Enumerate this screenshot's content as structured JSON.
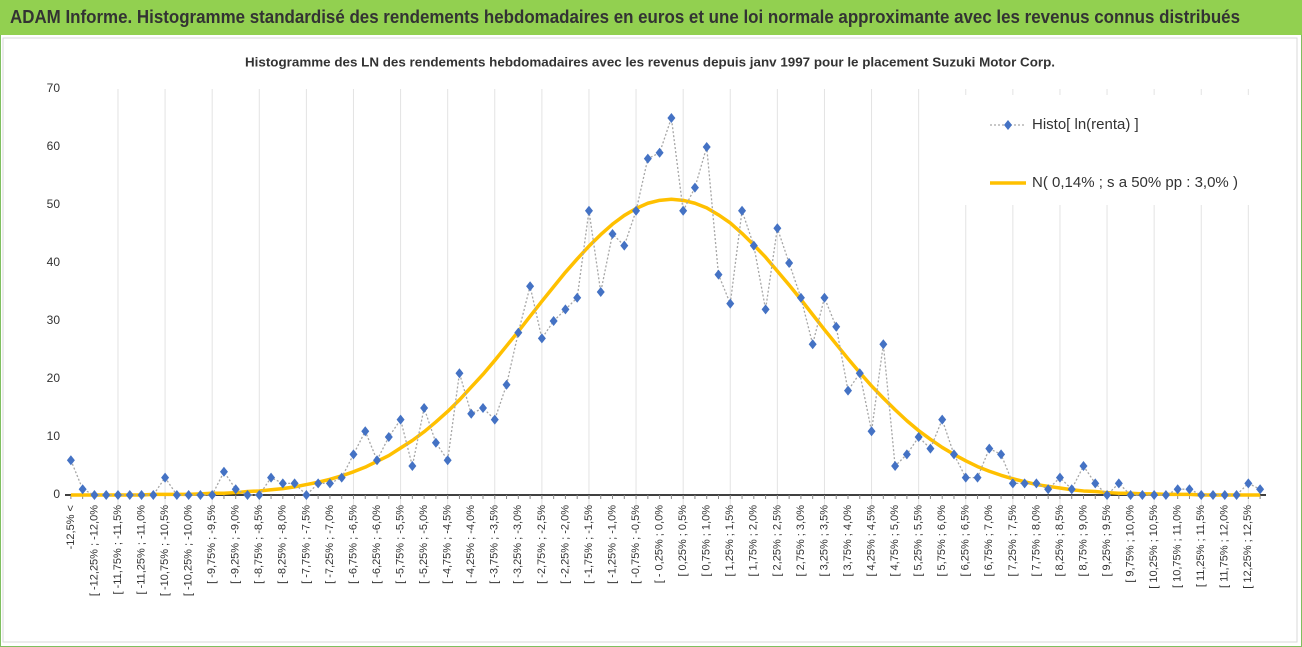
{
  "header": {
    "title": "ADAM Informe. Histogramme standardisé des rendements hebdomadaires en euros et une loi normale approximante avec les revenus connus distribués"
  },
  "chart_data": {
    "type": "line",
    "title": "Histogramme  des LN des rendements hebdomadaires avec les revenus depuis janv 1997 pour le placement Suzuki Motor Corp.",
    "categories": [
      "-12,5% <",
      null,
      "[ -12,25% ; -12,0%",
      null,
      "[ -11,75% ; -11,5%",
      null,
      "[ -11,25% ; -11,0%",
      null,
      "[ -10,75% ; -10,5%",
      null,
      "[ -10,25% ; -10,0%",
      null,
      "[ -9,75% ; -9,5%",
      null,
      "[ -9,25% ; -9,0%",
      null,
      "[ -8,75% ; -8,5%",
      null,
      "[ -8,25% ; -8,0%",
      null,
      "[ -7,75% ; -7,5%",
      null,
      "[ -7,25% ; -7,0%",
      null,
      "[ -6,75% ; -6,5%",
      null,
      "[ -6,25% ; -6,0%",
      null,
      "[ -5,75% ; -5,5%",
      null,
      "[ -5,25% ; -5,0%",
      null,
      "[ -4,75% ; -4,5%",
      null,
      "[ -4,25% ; -4,0%",
      null,
      "[ -3,75% ; -3,5%",
      null,
      "[ -3,25% ; -3,0%",
      null,
      "[ -2,75% ; -2,5%",
      null,
      "[ -2,25% ; -2,0%",
      null,
      "[ -1,75% ; -1,5%",
      null,
      "[ -1,25% ; -1,0%",
      null,
      "[ -0,75% ; -0,5%",
      null,
      "[ - 0,25% ; 0,0%",
      null,
      "[ 0,25% ; 0,5%",
      null,
      "[ 0,75% ; 1,0%",
      null,
      "[ 1,25% ; 1,5%",
      null,
      "[ 1,75% ; 2,0%",
      null,
      "[ 2,25% ; 2,5%",
      null,
      "[ 2,75% ; 3,0%",
      null,
      "[ 3,25% ; 3,5%",
      null,
      "[ 3,75% ; 4,0%",
      null,
      "[ 4,25% ; 4,5%",
      null,
      "[ 4,75% ; 5,0%",
      null,
      "[ 5,25% ; 5,5%",
      null,
      "[ 5,75% ; 6,0%",
      null,
      "[ 6,25% ; 6,5%",
      null,
      "[ 6,75% ; 7,0%",
      null,
      "[ 7,25% ; 7,5%",
      null,
      "[ 7,75% ; 8,0%",
      null,
      "[ 8,25% ; 8,5%",
      null,
      "[ 8,75% ; 9,0%",
      null,
      "[ 9,25% ; 9,5%",
      null,
      "[ 9,75% ; 10,0%",
      null,
      "[ 10,25% ; 10,5%",
      null,
      "[ 10,75% ; 11,0%",
      null,
      "[ 11,25% ; 11,5%",
      null,
      "[ 11,75% ; 12,0%",
      null,
      "[ 12,25% ; 12,5%",
      null
    ],
    "series": [
      {
        "name": "Histo[ ln(renta) ]",
        "color": "#4472c4",
        "marker": "diamond",
        "values": [
          6,
          1,
          0,
          0,
          0,
          0,
          0,
          0,
          3,
          0,
          0,
          0,
          0,
          4,
          1,
          0,
          0,
          3,
          2,
          2,
          0,
          2,
          2,
          3,
          7,
          11,
          6,
          10,
          13,
          5,
          15,
          9,
          6,
          21,
          14,
          15,
          13,
          19,
          28,
          36,
          27,
          30,
          32,
          34,
          49,
          35,
          45,
          43,
          49,
          58,
          59,
          65,
          49,
          53,
          60,
          38,
          33,
          49,
          43,
          32,
          46,
          40,
          34,
          26,
          34,
          29,
          18,
          21,
          11,
          26,
          5,
          7,
          10,
          8,
          13,
          7,
          3,
          3,
          8,
          7,
          2,
          2,
          2,
          1,
          3,
          1,
          5,
          2,
          0,
          2,
          0,
          0,
          0,
          0,
          1,
          1,
          0,
          0,
          0,
          0,
          2,
          1
        ]
      },
      {
        "name": "N( 0,14% ; s a 50% pp : 3,0% )",
        "color": "#ffc000",
        "values": [
          0,
          0,
          0,
          0,
          0,
          0,
          0,
          0.1,
          0.1,
          0.1,
          0.1,
          0.2,
          0.3,
          0.3,
          0.4,
          0.6,
          0.7,
          0.9,
          1.1,
          1.4,
          1.8,
          2.2,
          2.7,
          3.3,
          4.0,
          4.8,
          5.8,
          6.8,
          8.1,
          9.4,
          10.9,
          12.6,
          14.4,
          16.4,
          18.6,
          20.8,
          23.2,
          25.7,
          28.2,
          30.8,
          33.4,
          35.9,
          38.4,
          40.7,
          42.9,
          44.9,
          46.7,
          48.2,
          49.4,
          50.3,
          50.8,
          51.0,
          50.8,
          50.3,
          49.5,
          48.3,
          46.9,
          45.1,
          43.1,
          41.0,
          38.6,
          36.2,
          33.7,
          31.1,
          28.5,
          26.0,
          23.5,
          21.1,
          18.8,
          16.7,
          14.7,
          12.8,
          11.1,
          9.6,
          8.2,
          7.0,
          5.9,
          4.9,
          4.1,
          3.4,
          2.8,
          2.3,
          1.8,
          1.5,
          1.2,
          0.9,
          0.7,
          0.6,
          0.4,
          0.3,
          0.3,
          0.2,
          0.2,
          0.1,
          0.1,
          0.1,
          0,
          0,
          0,
          0,
          0,
          0
        ]
      }
    ],
    "ylim": [
      0,
      70
    ],
    "yticks": [
      0,
      10,
      20,
      30,
      40,
      50,
      60,
      70
    ],
    "grid": false
  }
}
